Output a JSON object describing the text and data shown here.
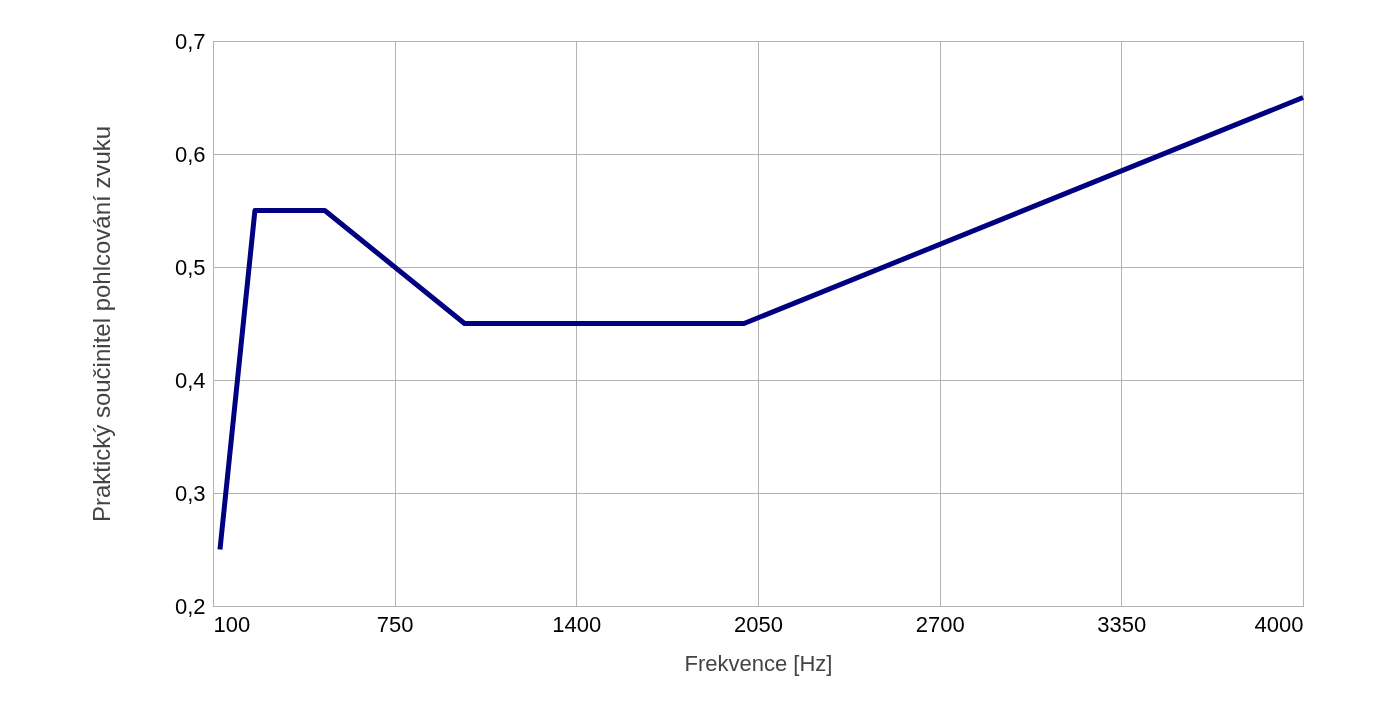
{
  "chart_data": {
    "type": "line",
    "xlabel": "Frekvence [Hz]",
    "ylabel": "Praktický součinitel pohlcování zvuku",
    "x": [
      125,
      250,
      500,
      1000,
      2000,
      4000
    ],
    "series": [
      {
        "color": "#000080",
        "values": [
          0.25,
          0.55,
          0.55,
          0.45,
          0.45,
          0.65
        ]
      }
    ],
    "xlim": [
      100,
      4000
    ],
    "xticks": [
      100,
      750,
      1400,
      2050,
      2700,
      3350,
      4000
    ],
    "ylim": [
      0.2,
      0.7
    ],
    "yticks": [
      {
        "value": 0.2,
        "label": "0,2"
      },
      {
        "value": 0.3,
        "label": "0,3"
      },
      {
        "value": 0.4,
        "label": "0,4"
      },
      {
        "value": 0.5,
        "label": "0,5"
      },
      {
        "value": 0.6,
        "label": "0,6"
      },
      {
        "value": 0.7,
        "label": "0,7"
      }
    ],
    "grid": true,
    "marker": "none",
    "line_style": "solid"
  }
}
